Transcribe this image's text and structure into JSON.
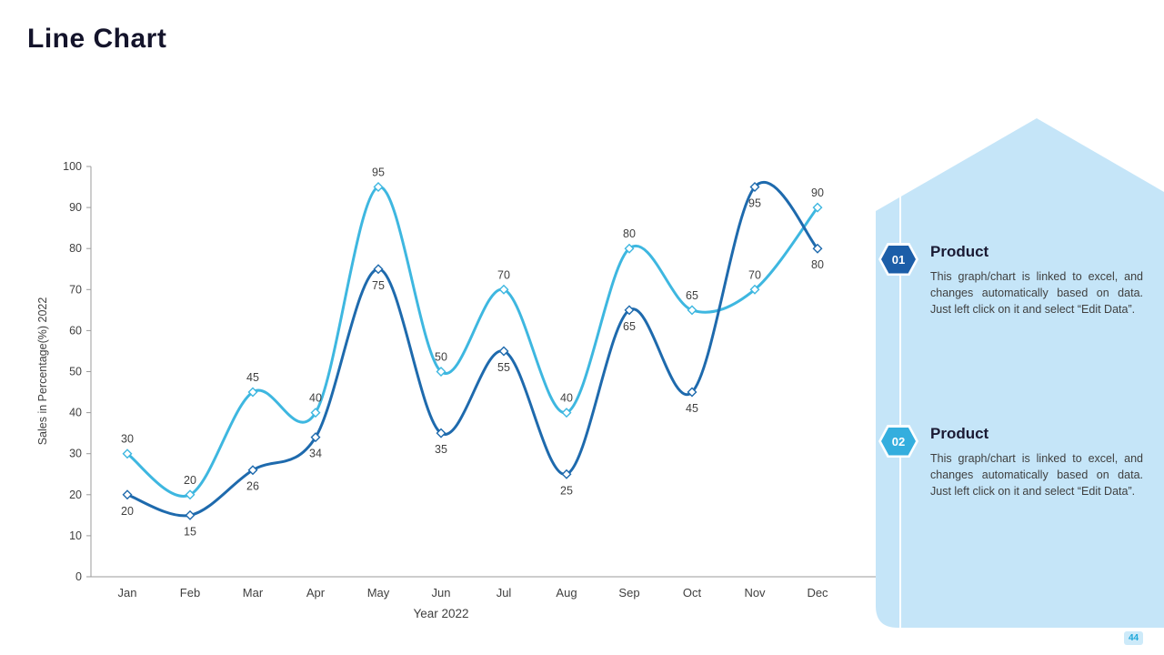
{
  "page": {
    "title": "Line Chart",
    "page_number": "44"
  },
  "chart_data": {
    "type": "line",
    "title": "",
    "xlabel": "Year 2022",
    "ylabel": "Sales in Percentage(%) 2022",
    "ylim": [
      0,
      100
    ],
    "ytick_step": 10,
    "grid": false,
    "legend_position": "none",
    "smooth": true,
    "categories": [
      "Jan",
      "Feb",
      "Mar",
      "Apr",
      "May",
      "Jun",
      "Jul",
      "Aug",
      "Sep",
      "Oct",
      "Nov",
      "Dec"
    ],
    "series": [
      {
        "name": "product-1",
        "color": "#3eb7e0",
        "marker": "diamond",
        "label_position": "above",
        "values": [
          30,
          20,
          45,
          40,
          95,
          50,
          70,
          40,
          80,
          65,
          70,
          90
        ]
      },
      {
        "name": "product-2",
        "color": "#1e6aad",
        "marker": "diamond",
        "label_position": "below",
        "values": [
          20,
          15,
          26,
          34,
          75,
          35,
          55,
          25,
          65,
          45,
          95,
          80
        ]
      }
    ]
  },
  "panel": {
    "background_color": "#c5e5f8",
    "items": [
      {
        "number": "01",
        "badge_color": "#1c5ea8",
        "title": "Product",
        "body": "This graph/chart is linked to excel, and changes automatically based on data. Just left click on it and select “Edit Data”."
      },
      {
        "number": "02",
        "badge_color": "#34aede",
        "title": "Product",
        "body": "This graph/chart is linked to excel, and changes automatically based on data. Just left click on it and select “Edit Data”."
      }
    ]
  }
}
